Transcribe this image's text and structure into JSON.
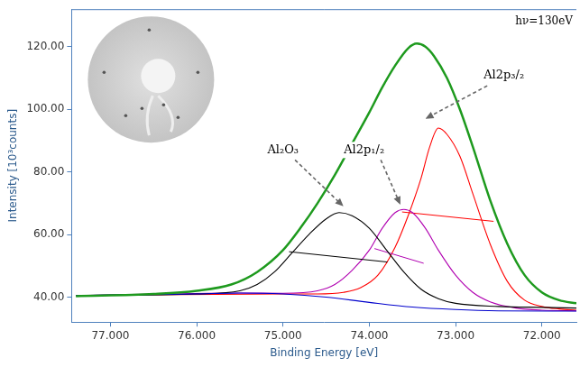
{
  "chart_data": {
    "type": "line",
    "xlabel": "Binding Energy [eV]",
    "ylabel": "Intensity [10³counts]",
    "note": "hν=130eV",
    "xlim": [
      77.45,
      71.6
    ],
    "xticks": [
      {
        "value": 77,
        "label": "77.000"
      },
      {
        "value": 76,
        "label": "76.000"
      },
      {
        "value": 75,
        "label": "75.000"
      },
      {
        "value": 74,
        "label": "74.000"
      },
      {
        "value": 73,
        "label": "73.000"
      },
      {
        "value": 72,
        "label": "72.000"
      }
    ],
    "ylim": [
      32,
      132
    ],
    "yticks": [
      {
        "value": 40,
        "label": "40.00"
      },
      {
        "value": 60,
        "label": "60.00"
      },
      {
        "value": 80,
        "label": "80.00"
      },
      {
        "value": 100,
        "label": "100.00"
      },
      {
        "value": 120,
        "label": "120.00"
      }
    ],
    "grid": false,
    "series": [
      {
        "color": "#1e9a1e",
        "x": [
          77.4,
          76.5,
          76.0,
          75.6,
          75.3,
          75.0,
          74.8,
          74.6,
          74.4,
          74.2,
          74.0,
          73.85,
          73.7,
          73.55,
          73.45,
          73.35,
          73.25,
          73.1,
          72.95,
          72.8,
          72.6,
          72.4,
          72.2,
          72.0,
          71.8,
          71.6
        ],
        "values": [
          40.3,
          41,
          42,
          44,
          48,
          55,
          62,
          70,
          79,
          89,
          99,
          107,
          114,
          119.5,
          121,
          120,
          117,
          110,
          100,
          88,
          71,
          57,
          47,
          41.5,
          39,
          38
        ]
      },
      {
        "color": "#0000cc",
        "x": [
          77.4,
          76.0,
          75.5,
          75.0,
          74.5,
          74.0,
          73.5,
          73.0,
          72.5,
          71.6
        ],
        "values": [
          40.5,
          41,
          41.3,
          41,
          40,
          38.3,
          36.8,
          36,
          35.6,
          35.5
        ]
      },
      {
        "name": "Al₂O₃",
        "color": "#000000",
        "x": [
          77.4,
          76.0,
          75.5,
          75.3,
          75.1,
          74.9,
          74.7,
          74.5,
          74.35,
          74.2,
          74.0,
          73.8,
          73.6,
          73.4,
          73.2,
          73.0,
          72.5,
          72.0,
          71.6
        ],
        "values": [
          40.5,
          41,
          42,
          44,
          48,
          54,
          60,
          65,
          67,
          66,
          62,
          55,
          48,
          42.5,
          39.5,
          38,
          37,
          36.7,
          36.5
        ],
        "width_line": {
          "x": [
            74.93,
            73.79
          ],
          "values": [
            54.5,
            51.2
          ]
        },
        "label_at": [
          75.0,
          87
        ],
        "arrow_to": [
          74.3,
          69
        ]
      },
      {
        "name": "Al2p₁/₂",
        "color": "#b000b0",
        "x": [
          77.4,
          75.5,
          75.0,
          74.6,
          74.4,
          74.2,
          74.0,
          73.85,
          73.7,
          73.6,
          73.5,
          73.35,
          73.2,
          73.0,
          72.8,
          72.6,
          72.3,
          72.0,
          71.6
        ],
        "values": [
          40.5,
          41.3,
          41.2,
          42,
          44,
          48.5,
          55,
          62,
          67,
          68,
          67,
          62,
          55,
          47,
          41.5,
          38.5,
          36.5,
          35.8,
          35.6
        ],
        "width_line": {
          "x": [
            73.94,
            73.37
          ],
          "values": [
            55.5,
            50.8
          ]
        },
        "label_at": [
          74.06,
          87
        ],
        "arrow_to": [
          73.64,
          69.5
        ]
      },
      {
        "name": "Al2p₃/₂",
        "color": "#ff0000",
        "x": [
          77.4,
          75.0,
          74.6,
          74.3,
          74.1,
          73.9,
          73.7,
          73.55,
          73.4,
          73.3,
          73.2,
          73.1,
          72.95,
          72.8,
          72.6,
          72.4,
          72.2,
          72.0,
          71.8,
          71.6
        ],
        "values": [
          40.5,
          41,
          41,
          41.5,
          43,
          47,
          56,
          66,
          78,
          88,
          94,
          92,
          85,
          73,
          57,
          45,
          39,
          37,
          36.2,
          35.8
        ],
        "width_line": {
          "x": [
            73.62,
            72.56
          ],
          "values": [
            67.2,
            64.2
          ]
        },
        "label_at": [
          72.44,
          110.7
        ],
        "arrow_to": [
          73.35,
          97
        ]
      }
    ]
  }
}
